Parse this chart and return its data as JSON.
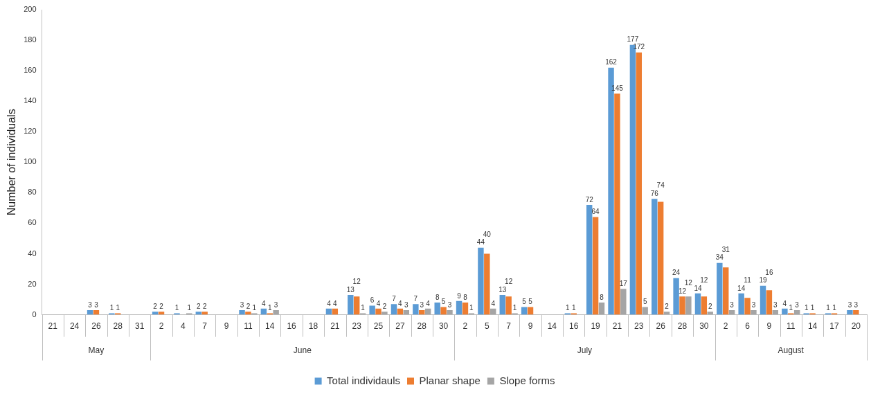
{
  "chart_data": {
    "type": "bar",
    "ylabel": "Number of individuals",
    "categories": [
      "21",
      "24",
      "26",
      "28",
      "31",
      "2",
      "4",
      "7",
      "9",
      "11",
      "14",
      "16",
      "18",
      "21",
      "23",
      "25",
      "27",
      "28",
      "30",
      "2",
      "5",
      "7",
      "9",
      "14",
      "16",
      "19",
      "21",
      "23",
      "26",
      "28",
      "30",
      "2",
      "6",
      "9",
      "11",
      "14",
      "17",
      "20"
    ],
    "annotations": [
      "May",
      "June",
      "July",
      "August"
    ],
    "series": [
      {
        "name": "Total individauls",
        "color": "#5b9bd5",
        "values": [
          null,
          null,
          3,
          1,
          null,
          2,
          1,
          2,
          null,
          3,
          4,
          null,
          null,
          4,
          13,
          6,
          7,
          7,
          8,
          9,
          44,
          13,
          5,
          null,
          1,
          72,
          162,
          177,
          76,
          24,
          14,
          34,
          14,
          19,
          4,
          1,
          1,
          3
        ]
      },
      {
        "name": "Planar shape",
        "color": "#ed7d31",
        "values": [
          null,
          null,
          3,
          1,
          null,
          2,
          null,
          2,
          null,
          2,
          1,
          null,
          null,
          4,
          12,
          4,
          4,
          3,
          5,
          8,
          40,
          12,
          5,
          null,
          1,
          64,
          145,
          172,
          74,
          12,
          12,
          31,
          11,
          16,
          1,
          1,
          1,
          3
        ]
      },
      {
        "name": "Slope forms",
        "color": "#a5a5a5",
        "values": [
          null,
          null,
          null,
          null,
          null,
          null,
          1,
          null,
          null,
          1,
          3,
          null,
          null,
          null,
          1,
          2,
          3,
          4,
          3,
          1,
          4,
          1,
          null,
          null,
          null,
          8,
          17,
          5,
          2,
          12,
          2,
          3,
          3,
          3,
          3,
          null,
          null,
          null
        ]
      }
    ],
    "ylim": [
      0,
      200
    ],
    "yticks": [
      0,
      20,
      40,
      60,
      80,
      100,
      120,
      140,
      160,
      180,
      200
    ],
    "grid": false,
    "legend": "bottom",
    "data_labels": true
  }
}
